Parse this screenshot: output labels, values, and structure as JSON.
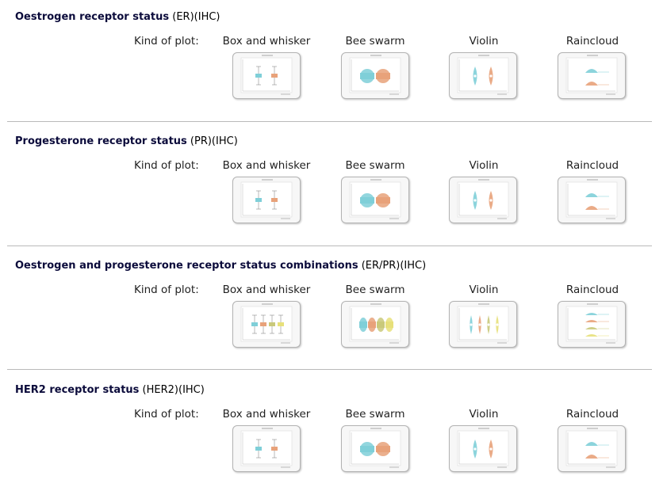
{
  "kind_label": "Kind of plot:",
  "plot_types": [
    "Box and whisker",
    "Bee swarm",
    "Violin",
    "Raincloud"
  ],
  "colors": {
    "teal": "#7fcfd8",
    "orange": "#e8a27a",
    "olive": "#c9c97a",
    "yellow": "#e7e07a"
  },
  "sections": [
    {
      "title_bold": "Oestrogen receptor status",
      "title_rest": " (ER)(IHC)",
      "groups": 2
    },
    {
      "title_bold": "Progesterone receptor status",
      "title_rest": " (PR)(IHC)",
      "groups": 2
    },
    {
      "title_bold": "Oestrogen and progesterone receptor status combinations",
      "title_rest": " (ER/PR)(IHC)",
      "groups": 4
    },
    {
      "title_bold": "HER2 receptor status",
      "title_rest": " (HER2)(IHC)",
      "groups": 2
    }
  ]
}
